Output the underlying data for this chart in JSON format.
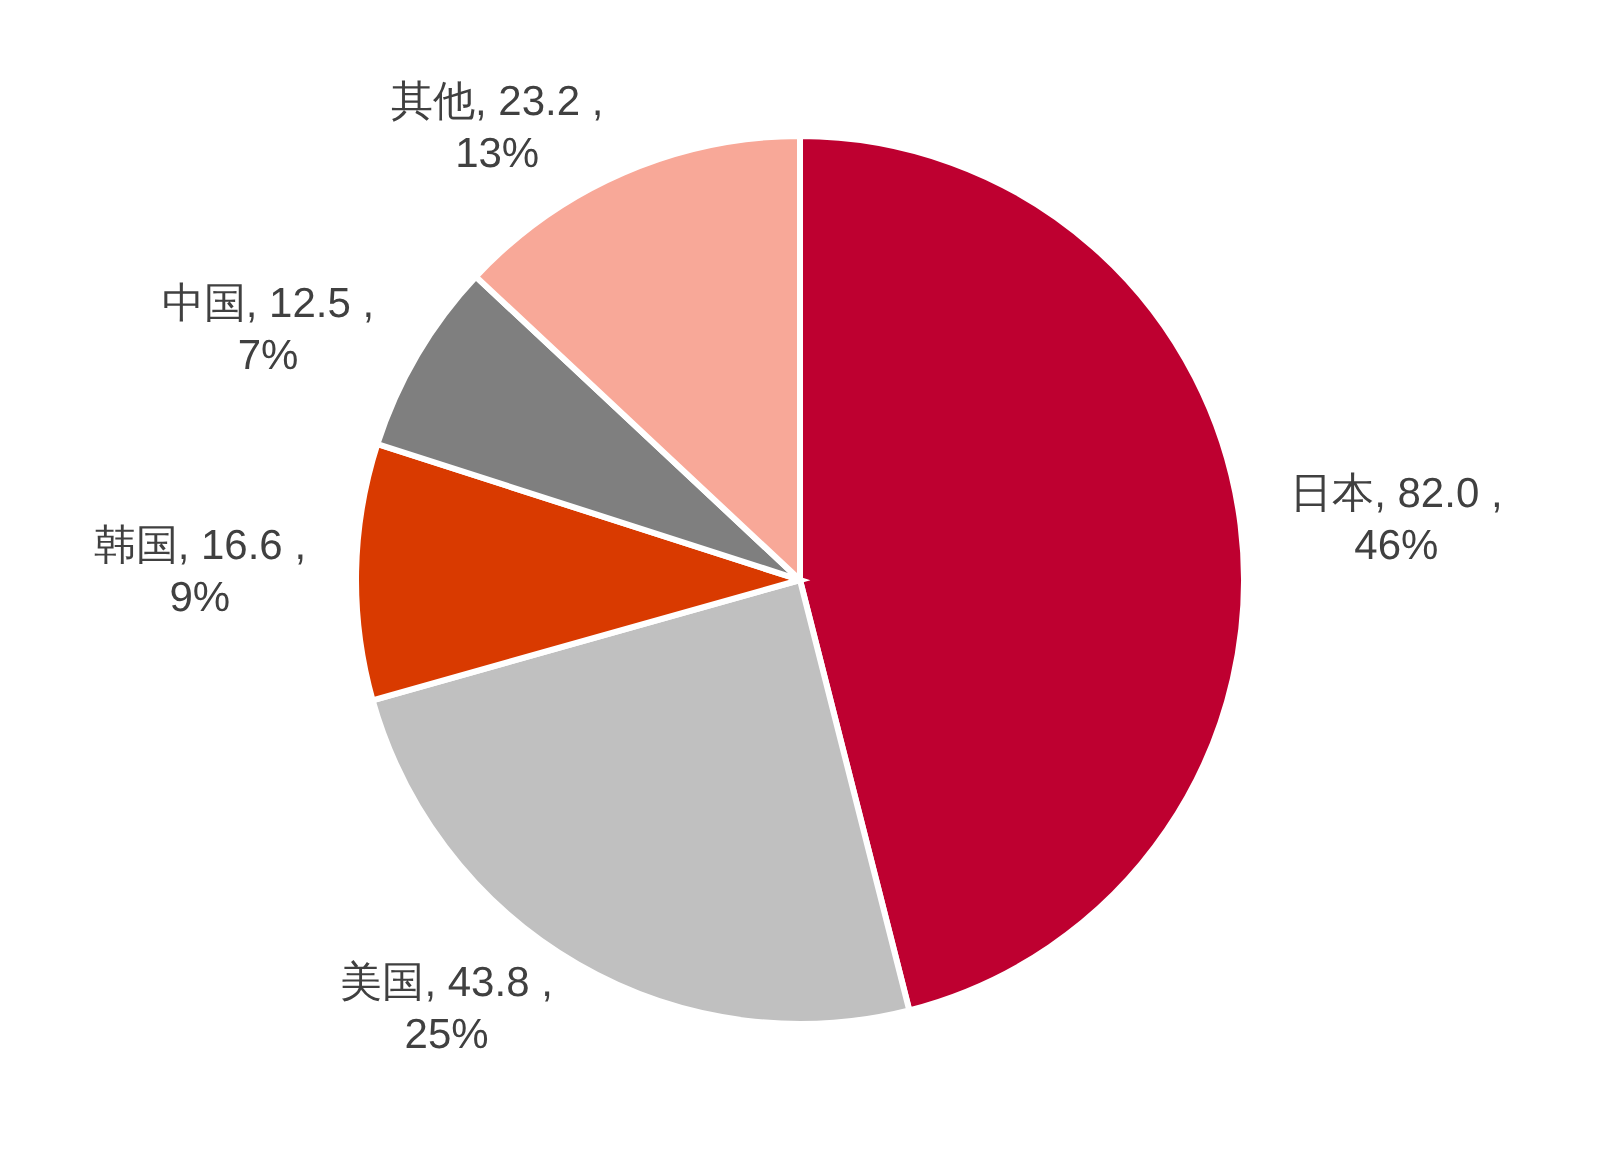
{
  "chart_data": {
    "type": "pie",
    "categories": [
      "日本",
      "美国",
      "韩国",
      "中国",
      "其他"
    ],
    "values": [
      82.0,
      43.8,
      16.6,
      12.5,
      23.2
    ],
    "value_labels": [
      "82.0 ,\n46%",
      "43.8 ,\n25%",
      "16.6 ,\n9%",
      "12.5 ,\n7%",
      "23.2 ,\n13%"
    ],
    "colors": [
      "#be0030",
      "#c0c0c0",
      "#d93a00",
      "#7f7f7f",
      "#f8a898"
    ]
  }
}
